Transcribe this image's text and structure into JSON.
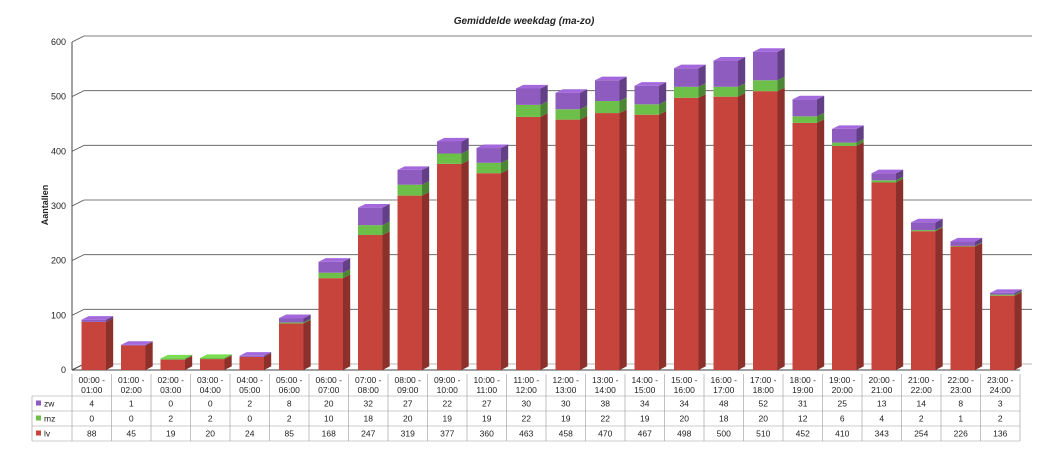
{
  "chart_data": {
    "type": "bar",
    "stacked": true,
    "title": "Gemiddelde weekdag (ma-zo)",
    "xlabel": "",
    "ylabel": "Aantallen",
    "ylim": [
      0,
      600
    ],
    "yticks": [
      0,
      100,
      200,
      300,
      400,
      500,
      600
    ],
    "grid": true,
    "legend": "data-table",
    "categories": [
      [
        "00:00 -",
        "01:00"
      ],
      [
        "01:00 -",
        "02:00"
      ],
      [
        "02:00 -",
        "03:00"
      ],
      [
        "03:00 -",
        "04:00"
      ],
      [
        "04:00 -",
        "05:00"
      ],
      [
        "05:00 -",
        "06:00"
      ],
      [
        "06:00 -",
        "07:00"
      ],
      [
        "07:00 -",
        "08:00"
      ],
      [
        "08:00 -",
        "09:00"
      ],
      [
        "09:00 -",
        "10:00"
      ],
      [
        "10:00 -",
        "11:00"
      ],
      [
        "11:00 -",
        "12:00"
      ],
      [
        "12:00 -",
        "13:00"
      ],
      [
        "13:00 -",
        "14:00"
      ],
      [
        "14:00 -",
        "15:00"
      ],
      [
        "15:00 -",
        "16:00"
      ],
      [
        "16:00 -",
        "17:00"
      ],
      [
        "17:00 -",
        "18:00"
      ],
      [
        "18:00 -",
        "19:00"
      ],
      [
        "19:00 -",
        "20:00"
      ],
      [
        "20:00 -",
        "21:00"
      ],
      [
        "21:00 -",
        "22:00"
      ],
      [
        "22:00 -",
        "23:00"
      ],
      [
        "23:00 -",
        "24:00"
      ]
    ],
    "series": [
      {
        "name": "lv",
        "color": "#c6443c",
        "values": [
          88,
          45,
          19,
          20,
          24,
          85,
          168,
          247,
          319,
          377,
          360,
          463,
          458,
          470,
          467,
          498,
          500,
          510,
          452,
          410,
          343,
          254,
          226,
          136
        ]
      },
      {
        "name": "mz",
        "color": "#6cc04a",
        "values": [
          0,
          0,
          2,
          2,
          0,
          2,
          10,
          18,
          20,
          19,
          19,
          22,
          19,
          22,
          19,
          20,
          18,
          20,
          12,
          6,
          4,
          2,
          1,
          2
        ]
      },
      {
        "name": "zw",
        "color": "#8e5bbf",
        "values": [
          4,
          1,
          0,
          0,
          2,
          8,
          20,
          32,
          27,
          22,
          27,
          30,
          30,
          38,
          34,
          34,
          48,
          52,
          31,
          25,
          13,
          14,
          8,
          3
        ]
      }
    ],
    "table_order": [
      "zw",
      "mz",
      "lv"
    ]
  }
}
